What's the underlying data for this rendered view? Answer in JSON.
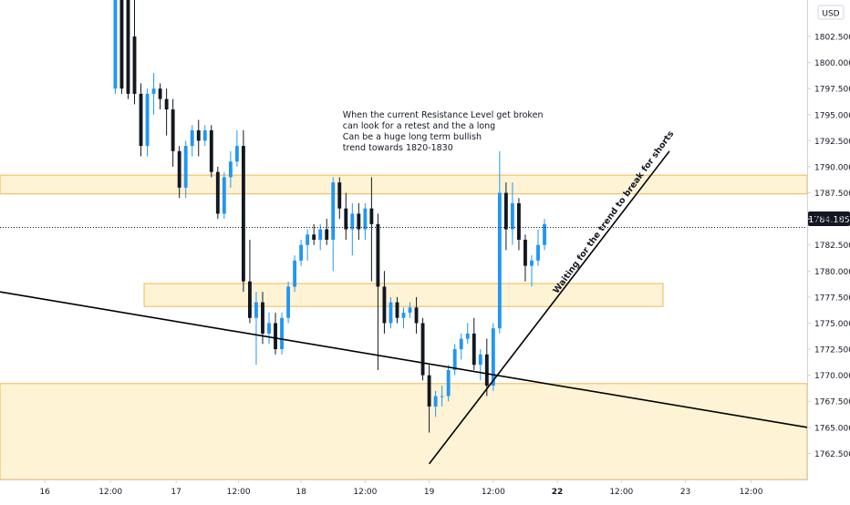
{
  "chart_data": {
    "type": "candlestick",
    "currency_label": "USD",
    "current_price_label": "1784.185",
    "current_price": 1784.185,
    "y_axis": {
      "range": [
        1760.0,
        1806.0
      ],
      "ticks": [
        {
          "value": 1762.5,
          "label": "1762.500"
        },
        {
          "value": 1765.0,
          "label": "1765.000"
        },
        {
          "value": 1767.5,
          "label": "1767.500"
        },
        {
          "value": 1770.0,
          "label": "1770.000"
        },
        {
          "value": 1772.5,
          "label": "1772.500"
        },
        {
          "value": 1775.0,
          "label": "1775.000"
        },
        {
          "value": 1777.5,
          "label": "1777.500"
        },
        {
          "value": 1780.0,
          "label": "1780.000"
        },
        {
          "value": 1782.5,
          "label": "1782.500"
        },
        {
          "value": 1785.0,
          "label": "1785.000"
        },
        {
          "value": 1787.5,
          "label": "1787.500"
        },
        {
          "value": 1790.0,
          "label": "1790.000"
        },
        {
          "value": 1792.5,
          "label": "1792.500"
        },
        {
          "value": 1795.0,
          "label": "1795.000"
        },
        {
          "value": 1797.5,
          "label": "1797.500"
        },
        {
          "value": 1800.0,
          "label": "1800.000"
        },
        {
          "value": 1802.5,
          "label": "1802.500"
        }
      ]
    },
    "x_axis": {
      "range": [
        0,
        126
      ],
      "ticks": [
        {
          "x": 7,
          "label": "16",
          "bold": false
        },
        {
          "x": 17.25,
          "label": "12:00",
          "bold": false
        },
        {
          "x": 27.5,
          "label": "17",
          "bold": false
        },
        {
          "x": 37.25,
          "label": "12:00",
          "bold": false
        },
        {
          "x": 47,
          "label": "18",
          "bold": false
        },
        {
          "x": 57,
          "label": "12:00",
          "bold": false
        },
        {
          "x": 67,
          "label": "19",
          "bold": false
        },
        {
          "x": 77,
          "label": "12:00",
          "bold": false
        },
        {
          "x": 87,
          "label": "22",
          "bold": true
        },
        {
          "x": 97,
          "label": "12:00",
          "bold": false
        },
        {
          "x": 107,
          "label": "23",
          "bold": false
        },
        {
          "x": 117.25,
          "label": "12:00",
          "bold": false
        }
      ]
    },
    "candles": [
      {
        "x": 18,
        "o": 1797.5,
        "h": 1806,
        "l": 1797,
        "c": 1806
      },
      {
        "x": 19,
        "o": 1806,
        "h": 1806,
        "l": 1797,
        "c": 1797.5
      },
      {
        "x": 20,
        "o": 1806,
        "h": 1806,
        "l": 1796.5,
        "c": 1797
      },
      {
        "x": 21,
        "o": 1802.5,
        "h": 1806,
        "l": 1796,
        "c": 1797
      },
      {
        "x": 22,
        "o": 1797,
        "h": 1798,
        "l": 1791,
        "c": 1792
      },
      {
        "x": 23,
        "o": 1792,
        "h": 1797.5,
        "l": 1791,
        "c": 1797
      },
      {
        "x": 24,
        "o": 1797,
        "h": 1799,
        "l": 1795,
        "c": 1797.5
      },
      {
        "x": 25,
        "o": 1797.5,
        "h": 1798,
        "l": 1795.5,
        "c": 1796.5
      },
      {
        "x": 26,
        "o": 1796.5,
        "h": 1797.5,
        "l": 1793,
        "c": 1795.5
      },
      {
        "x": 27,
        "o": 1795.5,
        "h": 1796.5,
        "l": 1790,
        "c": 1791.5
      },
      {
        "x": 28,
        "o": 1791.5,
        "h": 1792,
        "l": 1787,
        "c": 1788
      },
      {
        "x": 29,
        "o": 1788,
        "h": 1792.5,
        "l": 1787,
        "c": 1792
      },
      {
        "x": 30,
        "o": 1792,
        "h": 1794,
        "l": 1791,
        "c": 1793.5
      },
      {
        "x": 31,
        "o": 1793.5,
        "h": 1794.5,
        "l": 1791,
        "c": 1792.5
      },
      {
        "x": 32,
        "o": 1792.5,
        "h": 1794,
        "l": 1792,
        "c": 1793.5
      },
      {
        "x": 33,
        "o": 1793.5,
        "h": 1794,
        "l": 1789,
        "c": 1789.5
      },
      {
        "x": 34,
        "o": 1789.5,
        "h": 1790,
        "l": 1785,
        "c": 1785.5
      },
      {
        "x": 35,
        "o": 1785.5,
        "h": 1789.5,
        "l": 1785,
        "c": 1789
      },
      {
        "x": 36,
        "o": 1789,
        "h": 1791.5,
        "l": 1788,
        "c": 1790.5
      },
      {
        "x": 37,
        "o": 1790.5,
        "h": 1793.5,
        "l": 1790,
        "c": 1792
      },
      {
        "x": 38,
        "o": 1792,
        "h": 1793.5,
        "l": 1778,
        "c": 1779
      },
      {
        "x": 39,
        "o": 1779,
        "h": 1783,
        "l": 1775,
        "c": 1775.5
      },
      {
        "x": 40,
        "o": 1775.5,
        "h": 1778,
        "l": 1771,
        "c": 1777
      },
      {
        "x": 41,
        "o": 1777,
        "h": 1778,
        "l": 1773,
        "c": 1774
      },
      {
        "x": 42,
        "o": 1774,
        "h": 1776,
        "l": 1773,
        "c": 1775
      },
      {
        "x": 43,
        "o": 1775,
        "h": 1776,
        "l": 1772,
        "c": 1772.5
      },
      {
        "x": 44,
        "o": 1772.5,
        "h": 1776,
        "l": 1772,
        "c": 1775.5
      },
      {
        "x": 45,
        "o": 1775.5,
        "h": 1779,
        "l": 1775,
        "c": 1778.5
      },
      {
        "x": 46,
        "o": 1778.5,
        "h": 1781.5,
        "l": 1778,
        "c": 1781
      },
      {
        "x": 47,
        "o": 1781,
        "h": 1783,
        "l": 1780.5,
        "c": 1782.5
      },
      {
        "x": 48,
        "o": 1782.5,
        "h": 1784,
        "l": 1781,
        "c": 1783.5
      },
      {
        "x": 49,
        "o": 1783.5,
        "h": 1784.5,
        "l": 1782.5,
        "c": 1783
      },
      {
        "x": 50,
        "o": 1783,
        "h": 1784.5,
        "l": 1782,
        "c": 1784
      },
      {
        "x": 51,
        "o": 1784,
        "h": 1785,
        "l": 1782.5,
        "c": 1783
      },
      {
        "x": 52,
        "o": 1783,
        "h": 1789,
        "l": 1780,
        "c": 1788.5
      },
      {
        "x": 53,
        "o": 1788.5,
        "h": 1789,
        "l": 1785,
        "c": 1786
      },
      {
        "x": 54,
        "o": 1786,
        "h": 1787.5,
        "l": 1783,
        "c": 1784
      },
      {
        "x": 55,
        "o": 1784,
        "h": 1786.5,
        "l": 1781.5,
        "c": 1785.5
      },
      {
        "x": 56,
        "o": 1785.5,
        "h": 1786.5,
        "l": 1783,
        "c": 1784
      },
      {
        "x": 57,
        "o": 1784,
        "h": 1786.5,
        "l": 1783,
        "c": 1786
      },
      {
        "x": 58,
        "o": 1786,
        "h": 1789,
        "l": 1779,
        "c": 1784.5
      },
      {
        "x": 59,
        "o": 1784.5,
        "h": 1785.5,
        "l": 1770.5,
        "c": 1778.5
      },
      {
        "x": 60,
        "o": 1778.5,
        "h": 1780,
        "l": 1774,
        "c": 1775
      },
      {
        "x": 61,
        "o": 1775,
        "h": 1777.5,
        "l": 1774.5,
        "c": 1777
      },
      {
        "x": 62,
        "o": 1777,
        "h": 1777.5,
        "l": 1775,
        "c": 1775.5
      },
      {
        "x": 63,
        "o": 1775.5,
        "h": 1776.5,
        "l": 1774.5,
        "c": 1776
      },
      {
        "x": 64,
        "o": 1776,
        "h": 1777,
        "l": 1775.5,
        "c": 1776.5
      },
      {
        "x": 65,
        "o": 1776.5,
        "h": 1777.5,
        "l": 1774,
        "c": 1775
      },
      {
        "x": 66,
        "o": 1775,
        "h": 1775.5,
        "l": 1769.5,
        "c": 1770
      },
      {
        "x": 67,
        "o": 1770,
        "h": 1771,
        "l": 1764.5,
        "c": 1767
      },
      {
        "x": 68,
        "o": 1767,
        "h": 1768.5,
        "l": 1766,
        "c": 1768
      },
      {
        "x": 69,
        "o": 1768,
        "h": 1769,
        "l": 1767,
        "c": 1768
      },
      {
        "x": 70,
        "o": 1768,
        "h": 1771,
        "l": 1767.5,
        "c": 1770.5
      },
      {
        "x": 71,
        "o": 1770.5,
        "h": 1773,
        "l": 1770,
        "c": 1772.5
      },
      {
        "x": 72,
        "o": 1772.5,
        "h": 1774,
        "l": 1771.5,
        "c": 1773.5
      },
      {
        "x": 73,
        "o": 1773.5,
        "h": 1775,
        "l": 1773,
        "c": 1774
      },
      {
        "x": 74,
        "o": 1774,
        "h": 1775.5,
        "l": 1770.5,
        "c": 1771
      },
      {
        "x": 75,
        "o": 1771,
        "h": 1772.5,
        "l": 1769.5,
        "c": 1772
      },
      {
        "x": 76,
        "o": 1772,
        "h": 1773.5,
        "l": 1768,
        "c": 1769
      },
      {
        "x": 77,
        "o": 1769,
        "h": 1775,
        "l": 1768.5,
        "c": 1774.5
      },
      {
        "x": 78,
        "o": 1774.5,
        "h": 1791.5,
        "l": 1774,
        "c": 1787.5
      },
      {
        "x": 79,
        "o": 1787.5,
        "h": 1788.5,
        "l": 1782,
        "c": 1784
      },
      {
        "x": 80,
        "o": 1784,
        "h": 1788.5,
        "l": 1782.5,
        "c": 1786.5
      },
      {
        "x": 81,
        "o": 1786.5,
        "h": 1787,
        "l": 1782,
        "c": 1783
      },
      {
        "x": 82,
        "o": 1783,
        "h": 1783.5,
        "l": 1779,
        "c": 1780.5
      },
      {
        "x": 83,
        "o": 1780.5,
        "h": 1781.5,
        "l": 1778.5,
        "c": 1781
      },
      {
        "x": 84,
        "o": 1781,
        "h": 1784,
        "l": 1780.5,
        "c": 1782.5
      },
      {
        "x": 85,
        "o": 1782.5,
        "h": 1785,
        "l": 1782,
        "c": 1784.5
      }
    ],
    "zones": [
      {
        "x0": 0,
        "x1": 126,
        "y0": 1787.4,
        "y1": 1789.2
      },
      {
        "x0": 22.5,
        "x1": 103.5,
        "y0": 1776.6,
        "y1": 1778.8
      },
      {
        "x0": 0,
        "x1": 126,
        "y0": 1760.0,
        "y1": 1769.2
      }
    ],
    "lines": [
      {
        "x0": 0,
        "y0": 1778,
        "x1": 126,
        "y1": 1765
      },
      {
        "x0": 67,
        "y0": 1761.5,
        "x1": 104.5,
        "y1": 1791.5
      }
    ],
    "annotations": [
      {
        "lines": [
          "When the current Resistance Level get broken",
          "can look for a retest and the a long",
          "Can be a huge long term bullish",
          "trend towards 1820-1830"
        ],
        "x": 53.5,
        "y": 1794.7
      },
      {
        "text": "Waiting for the trend to break for shorts",
        "x": 87,
        "y": 1777.8,
        "angle": -54
      }
    ],
    "colors": {
      "up": "#2196f3",
      "down": "#131722",
      "zone_fill": "#fff3d6",
      "zone_border": "#f2b84b",
      "trendline": "#000000",
      "axis_text": "#131722",
      "price_tag_bg": "#131722",
      "price_tag_text": "#ffffff"
    },
    "grid": false
  }
}
